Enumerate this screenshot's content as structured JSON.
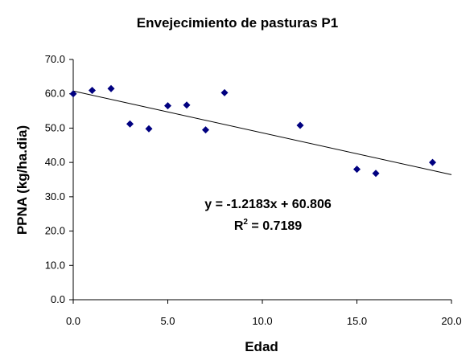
{
  "chart_data": {
    "type": "scatter",
    "title": "Envejecimiento de pasturas P1",
    "xlabel": "Edad",
    "ylabel": "PPNA (kg/ha.dia)",
    "xlim": [
      0,
      20
    ],
    "ylim": [
      0,
      70
    ],
    "x_ticks": [
      "0.0",
      "5.0",
      "10.0",
      "15.0",
      "20.0"
    ],
    "y_ticks": [
      "0.0",
      "10.0",
      "20.0",
      "30.0",
      "40.0",
      "50.0",
      "60.0",
      "70.0"
    ],
    "x_tick_values": [
      0,
      5,
      10,
      15,
      20
    ],
    "y_tick_values": [
      0,
      10,
      20,
      30,
      40,
      50,
      60,
      70
    ],
    "grid": false,
    "legend": "none",
    "marker_color": "#000080",
    "trendline": {
      "slope": -1.2183,
      "intercept": 60.806,
      "equation": "y = -1.2183x + 60.806",
      "r2_prefix": "R",
      "r2_sup": "2",
      "r2_value": " = 0.7189"
    },
    "points": [
      {
        "x": 0,
        "y": 60.0
      },
      {
        "x": 1,
        "y": 61.0
      },
      {
        "x": 2,
        "y": 61.5
      },
      {
        "x": 3,
        "y": 51.2
      },
      {
        "x": 4,
        "y": 49.8
      },
      {
        "x": 5,
        "y": 56.5
      },
      {
        "x": 6,
        "y": 56.7
      },
      {
        "x": 7,
        "y": 49.5
      },
      {
        "x": 8,
        "y": 60.3
      },
      {
        "x": 12,
        "y": 50.8
      },
      {
        "x": 15,
        "y": 38.0
      },
      {
        "x": 16,
        "y": 36.8
      },
      {
        "x": 19,
        "y": 40.0
      }
    ]
  }
}
